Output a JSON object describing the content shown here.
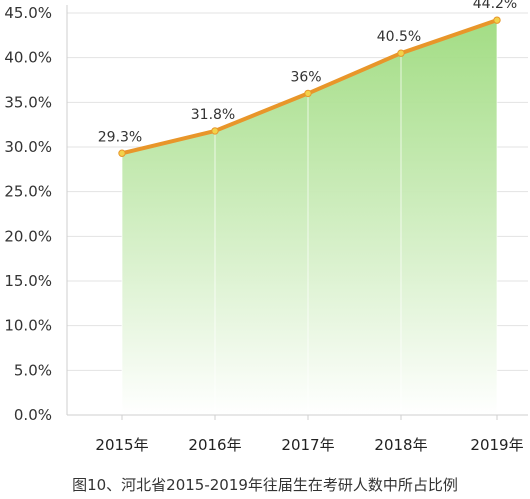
{
  "chart_data": {
    "type": "area",
    "categories": [
      "2015年",
      "2016年",
      "2017年",
      "2018年",
      "2019年"
    ],
    "values": [
      29.3,
      31.8,
      36.0,
      40.5,
      44.2
    ],
    "data_labels": [
      "29.3%",
      "31.8%",
      "36%",
      "40.5%",
      "44.2%"
    ],
    "y_ticks": [
      "0.0%",
      "5.0%",
      "10.0%",
      "15.0%",
      "20.0%",
      "25.0%",
      "30.0%",
      "35.0%",
      "40.0%",
      "45.0%"
    ],
    "ylim": [
      0,
      45
    ],
    "grid": true,
    "caption": "图10、河北省2015-2019年往届生在考研人数中所占比例",
    "line_color": "#E8962A",
    "marker_color": "#F2D24A",
    "fill_top_color": "#9EDB7E",
    "fill_bottom_color": "#FFFFFF"
  }
}
